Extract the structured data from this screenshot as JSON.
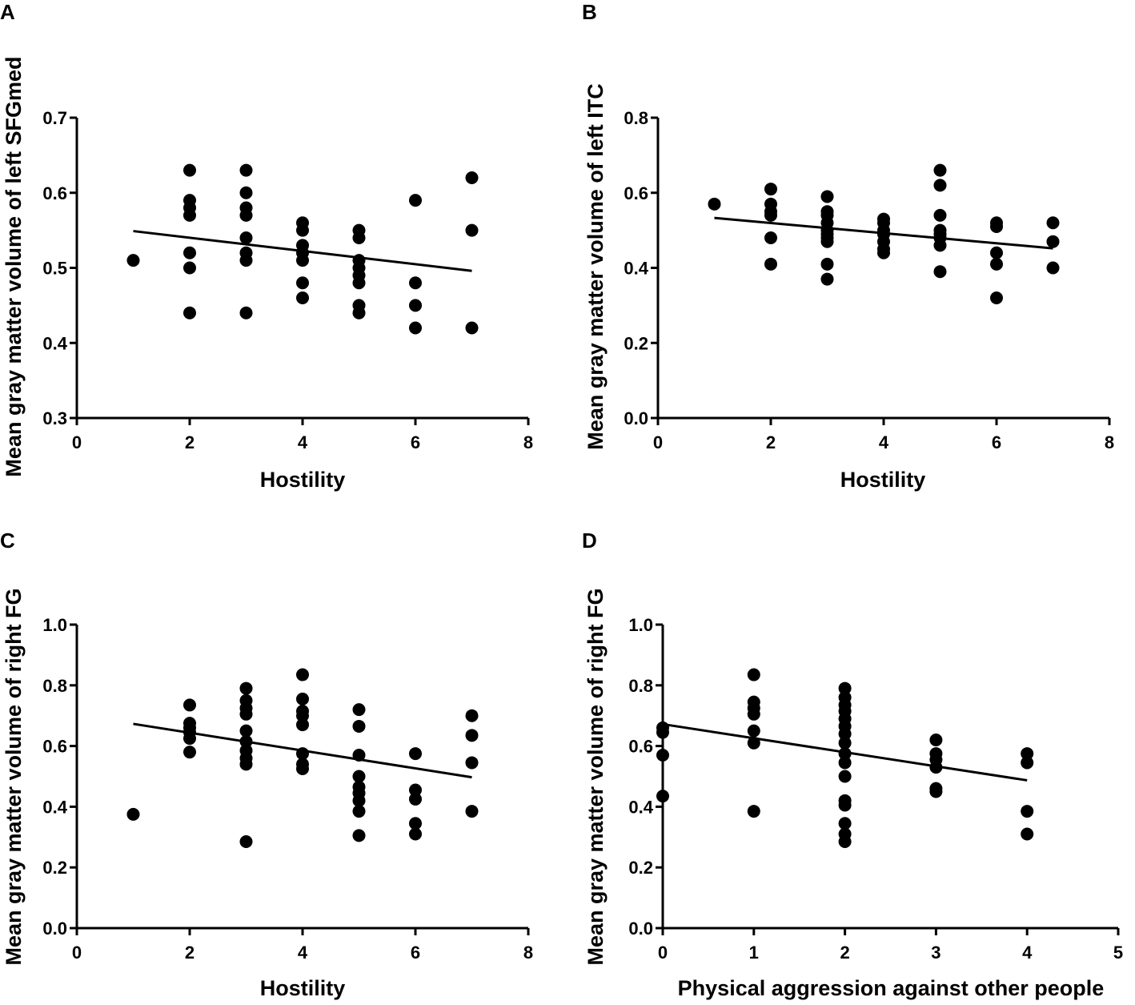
{
  "figure": {
    "panels": [
      "A",
      "B",
      "C",
      "D"
    ]
  },
  "chart_data": [
    {
      "panel": "A",
      "type": "scatter",
      "xlabel": "Hostility",
      "ylabel": "Mean gray matter volume of left SFGmed",
      "xlim": [
        0,
        8
      ],
      "ylim": [
        0.3,
        0.7
      ],
      "xticks": [
        0,
        2,
        4,
        6,
        8
      ],
      "yticks": [
        0.3,
        0.4,
        0.5,
        0.6,
        0.7
      ],
      "ydecimals": 1,
      "fit": {
        "x": [
          1,
          7
        ],
        "y": [
          0.549,
          0.496
        ]
      },
      "points": [
        [
          1,
          0.51
        ],
        [
          2,
          0.63
        ],
        [
          2,
          0.59
        ],
        [
          2,
          0.58
        ],
        [
          2,
          0.57
        ],
        [
          2,
          0.52
        ],
        [
          2,
          0.5
        ],
        [
          2,
          0.44
        ],
        [
          3,
          0.63
        ],
        [
          3,
          0.6
        ],
        [
          3,
          0.58
        ],
        [
          3,
          0.57
        ],
        [
          3,
          0.54
        ],
        [
          3,
          0.52
        ],
        [
          3,
          0.51
        ],
        [
          3,
          0.44
        ],
        [
          4,
          0.56
        ],
        [
          4,
          0.55
        ],
        [
          4,
          0.53
        ],
        [
          4,
          0.52
        ],
        [
          4,
          0.51
        ],
        [
          4,
          0.48
        ],
        [
          4,
          0.46
        ],
        [
          5,
          0.55
        ],
        [
          5,
          0.54
        ],
        [
          5,
          0.51
        ],
        [
          5,
          0.5
        ],
        [
          5,
          0.49
        ],
        [
          5,
          0.48
        ],
        [
          5,
          0.45
        ],
        [
          5,
          0.44
        ],
        [
          6,
          0.59
        ],
        [
          6,
          0.48
        ],
        [
          6,
          0.45
        ],
        [
          6,
          0.42
        ],
        [
          7,
          0.62
        ],
        [
          7,
          0.55
        ],
        [
          7,
          0.42
        ]
      ]
    },
    {
      "panel": "B",
      "type": "scatter",
      "xlabel": "Hostility",
      "ylabel": "Mean gray matter volume of left ITC",
      "xlim": [
        0,
        8
      ],
      "ylim": [
        0,
        0.8
      ],
      "xticks": [
        0,
        2,
        4,
        6,
        8
      ],
      "yticks": [
        0,
        0.2,
        0.4,
        0.6,
        0.8
      ],
      "ydecimals": 1,
      "fit": {
        "x": [
          1,
          7
        ],
        "y": [
          0.533,
          0.452
        ]
      },
      "points": [
        [
          1,
          0.57
        ],
        [
          2,
          0.61
        ],
        [
          2,
          0.57
        ],
        [
          2,
          0.55
        ],
        [
          2,
          0.54
        ],
        [
          2,
          0.48
        ],
        [
          2,
          0.41
        ],
        [
          3,
          0.59
        ],
        [
          3,
          0.55
        ],
        [
          3,
          0.54
        ],
        [
          3,
          0.52
        ],
        [
          3,
          0.5
        ],
        [
          3,
          0.49
        ],
        [
          3,
          0.48
        ],
        [
          3,
          0.47
        ],
        [
          3,
          0.41
        ],
        [
          3,
          0.37
        ],
        [
          4,
          0.53
        ],
        [
          4,
          0.52
        ],
        [
          4,
          0.5
        ],
        [
          4,
          0.49
        ],
        [
          4,
          0.47
        ],
        [
          4,
          0.45
        ],
        [
          4,
          0.44
        ],
        [
          5,
          0.66
        ],
        [
          5,
          0.62
        ],
        [
          5,
          0.54
        ],
        [
          5,
          0.5
        ],
        [
          5,
          0.49
        ],
        [
          5,
          0.48
        ],
        [
          5,
          0.46
        ],
        [
          5,
          0.39
        ],
        [
          6,
          0.52
        ],
        [
          6,
          0.51
        ],
        [
          6,
          0.44
        ],
        [
          6,
          0.41
        ],
        [
          6,
          0.32
        ],
        [
          7,
          0.52
        ],
        [
          7,
          0.47
        ],
        [
          7,
          0.4
        ]
      ]
    },
    {
      "panel": "C",
      "type": "scatter",
      "xlabel": "Hostility",
      "ylabel": "Mean gray matter volume of right FG",
      "xlim": [
        0,
        8
      ],
      "ylim": [
        0,
        1.0
      ],
      "xticks": [
        0,
        2,
        4,
        6,
        8
      ],
      "yticks": [
        0,
        0.2,
        0.4,
        0.6,
        0.8,
        1.0
      ],
      "ydecimals": 1,
      "fit": {
        "x": [
          1,
          7
        ],
        "y": [
          0.673,
          0.497
        ]
      },
      "points": [
        [
          1,
          0.375
        ],
        [
          2,
          0.735
        ],
        [
          2,
          0.675
        ],
        [
          2,
          0.66
        ],
        [
          2,
          0.645
        ],
        [
          2,
          0.625
        ],
        [
          2,
          0.58
        ],
        [
          3,
          0.79
        ],
        [
          3,
          0.75
        ],
        [
          3,
          0.725
        ],
        [
          3,
          0.705
        ],
        [
          3,
          0.65
        ],
        [
          3,
          0.615
        ],
        [
          3,
          0.585
        ],
        [
          3,
          0.56
        ],
        [
          3,
          0.54
        ],
        [
          3,
          0.285
        ],
        [
          4,
          0.835
        ],
        [
          4,
          0.755
        ],
        [
          4,
          0.715
        ],
        [
          4,
          0.7
        ],
        [
          4,
          0.67
        ],
        [
          4,
          0.575
        ],
        [
          4,
          0.54
        ],
        [
          4,
          0.525
        ],
        [
          5,
          0.72
        ],
        [
          5,
          0.665
        ],
        [
          5,
          0.57
        ],
        [
          5,
          0.5
        ],
        [
          5,
          0.465
        ],
        [
          5,
          0.445
        ],
        [
          5,
          0.42
        ],
        [
          5,
          0.385
        ],
        [
          5,
          0.305
        ],
        [
          6,
          0.575
        ],
        [
          6,
          0.455
        ],
        [
          6,
          0.425
        ],
        [
          6,
          0.345
        ],
        [
          6,
          0.31
        ],
        [
          7,
          0.7
        ],
        [
          7,
          0.635
        ],
        [
          7,
          0.545
        ],
        [
          7,
          0.385
        ]
      ]
    },
    {
      "panel": "D",
      "type": "scatter",
      "xlabel": "Physical aggression against other people",
      "ylabel": "Mean gray matter volume of right FG",
      "xlim": [
        0,
        5
      ],
      "ylim": [
        0,
        1.0
      ],
      "xticks": [
        0,
        1,
        2,
        3,
        4,
        5
      ],
      "yticks": [
        0,
        0.2,
        0.4,
        0.6,
        0.8,
        1.0
      ],
      "ydecimals": 1,
      "fit": {
        "x": [
          0,
          4
        ],
        "y": [
          0.672,
          0.487
        ]
      },
      "points": [
        [
          0,
          0.66
        ],
        [
          0,
          0.645
        ],
        [
          0,
          0.57
        ],
        [
          0,
          0.435
        ],
        [
          1,
          0.835
        ],
        [
          1,
          0.745
        ],
        [
          1,
          0.725
        ],
        [
          1,
          0.705
        ],
        [
          1,
          0.65
        ],
        [
          1,
          0.61
        ],
        [
          1,
          0.385
        ],
        [
          2,
          0.79
        ],
        [
          2,
          0.76
        ],
        [
          2,
          0.735
        ],
        [
          2,
          0.715
        ],
        [
          2,
          0.69
        ],
        [
          2,
          0.665
        ],
        [
          2,
          0.64
        ],
        [
          2,
          0.61
        ],
        [
          2,
          0.575
        ],
        [
          2,
          0.545
        ],
        [
          2,
          0.5
        ],
        [
          2,
          0.42
        ],
        [
          2,
          0.405
        ],
        [
          2,
          0.345
        ],
        [
          2,
          0.31
        ],
        [
          2,
          0.285
        ],
        [
          3,
          0.62
        ],
        [
          3,
          0.575
        ],
        [
          3,
          0.555
        ],
        [
          3,
          0.53
        ],
        [
          3,
          0.46
        ],
        [
          3,
          0.45
        ],
        [
          4,
          0.575
        ],
        [
          4,
          0.545
        ],
        [
          4,
          0.385
        ],
        [
          4,
          0.31
        ]
      ]
    }
  ]
}
